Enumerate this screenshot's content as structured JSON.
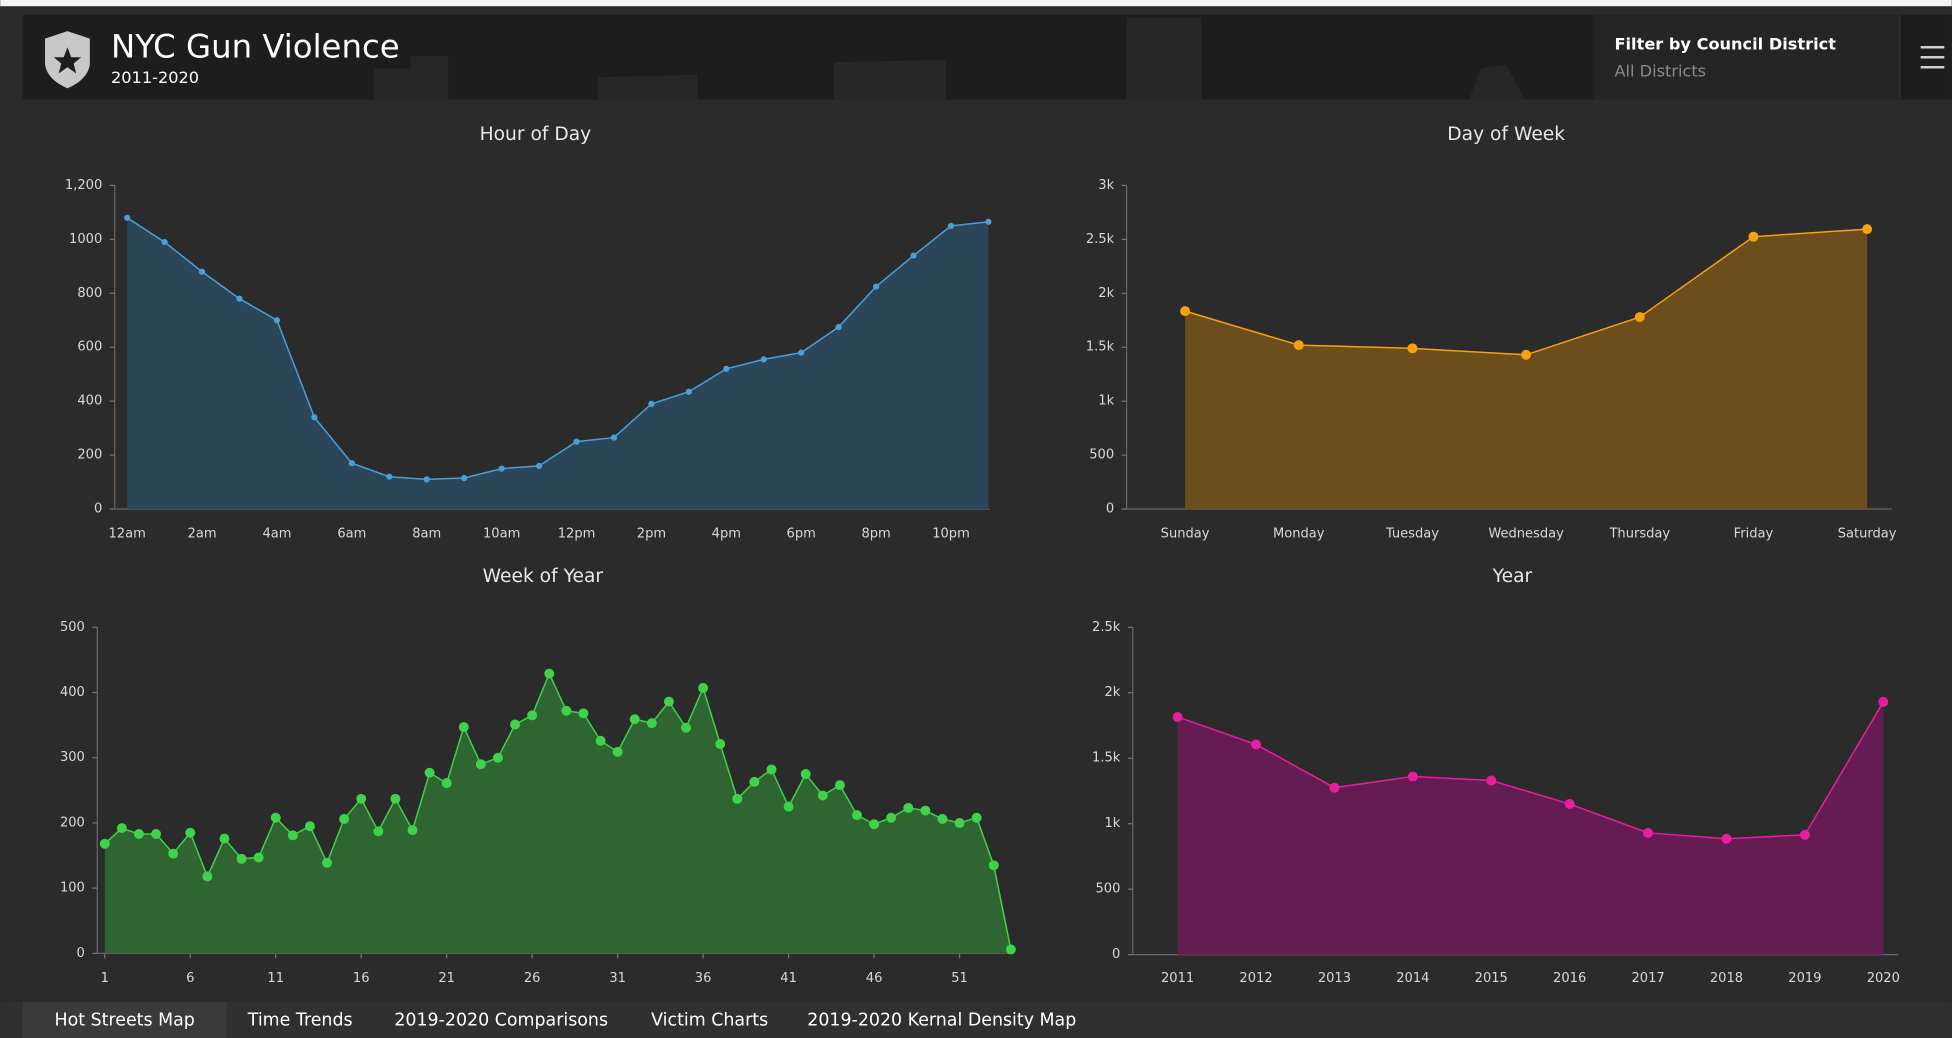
{
  "header": {
    "title": "NYC Gun Violence",
    "subtitle": "2011-2020"
  },
  "filter": {
    "label": "Filter by Council District",
    "value": "All Districts"
  },
  "tabs": [
    "Hot Streets Map",
    "Time Trends",
    "2019-2020 Comparisons",
    "Victim Charts",
    "2019-2020 Kernal Density Map"
  ],
  "chart_data": [
    {
      "type": "area",
      "title": "Hour of Day",
      "categories": [
        "12am",
        null,
        "2am",
        null,
        "4am",
        null,
        "6am",
        null,
        "8am",
        null,
        "10am",
        null,
        "12pm",
        null,
        "2pm",
        null,
        "4pm",
        null,
        "6pm",
        null,
        "8pm",
        null,
        "10pm",
        null
      ],
      "values": [
        1080,
        990,
        880,
        780,
        700,
        340,
        170,
        120,
        110,
        115,
        150,
        160,
        250,
        265,
        390,
        435,
        520,
        555,
        580,
        675,
        825,
        940,
        1050,
        1065
      ],
      "color": "#4a9fd8",
      "fill_color": "#2c4659",
      "ylim": [
        0,
        1200
      ],
      "yticks": [
        0,
        200,
        400,
        600,
        800,
        1000,
        {
          "value": 1200,
          "label": "1,200"
        }
      ],
      "grid": false
    },
    {
      "type": "area",
      "title": "Day of Week",
      "categories": [
        "Sunday",
        "Monday",
        "Tuesday",
        "Wednesday",
        "Thursday",
        "Friday",
        "Saturday"
      ],
      "values": [
        1835,
        1520,
        1490,
        1430,
        1780,
        2525,
        2595
      ],
      "color": "#f5a20e",
      "fill_color": "#6b4e1c",
      "ylim": [
        0,
        3000
      ],
      "yticks": [
        0,
        500,
        {
          "value": 1000,
          "label": "1k"
        },
        {
          "value": 1500,
          "label": "1.5k"
        },
        {
          "value": 2000,
          "label": "2k"
        },
        {
          "value": 2500,
          "label": "2.5k"
        },
        {
          "value": 3000,
          "label": "3k"
        }
      ],
      "grid": false
    },
    {
      "type": "area",
      "title": "Week of Year",
      "x": [
        1,
        2,
        3,
        4,
        5,
        6,
        7,
        8,
        9,
        10,
        11,
        12,
        13,
        14,
        15,
        16,
        17,
        18,
        19,
        20,
        21,
        22,
        23,
        24,
        25,
        26,
        27,
        28,
        29,
        30,
        31,
        32,
        33,
        34,
        35,
        36,
        37,
        38,
        39,
        40,
        41,
        42,
        43,
        44,
        45,
        46,
        47,
        48,
        49,
        50,
        51,
        52,
        53,
        54
      ],
      "values": [
        168,
        192,
        183,
        183,
        153,
        185,
        118,
        176,
        145,
        147,
        208,
        181,
        195,
        139,
        206,
        237,
        187,
        237,
        189,
        277,
        261,
        347,
        290,
        300,
        351,
        365,
        429,
        372,
        368,
        326,
        309,
        359,
        353,
        386,
        346,
        407,
        321,
        237,
        263,
        282,
        225,
        275,
        242,
        258,
        212,
        198,
        208,
        223,
        219,
        206,
        200,
        208,
        135,
        6
      ],
      "color": "#3fd24a",
      "fill_color": "#2f6530",
      "xlim": [
        1,
        54
      ],
      "xticks": [
        1,
        6,
        11,
        16,
        21,
        26,
        31,
        36,
        41,
        46,
        51
      ],
      "ylim": [
        0,
        500
      ],
      "yticks": [
        0,
        100,
        200,
        300,
        400,
        500
      ],
      "grid": false
    },
    {
      "type": "area",
      "title": "Year",
      "categories": [
        "2011",
        "2012",
        "2013",
        "2014",
        "2015",
        "2016",
        "2017",
        "2018",
        "2019",
        "2020"
      ],
      "values": [
        1815,
        1605,
        1275,
        1360,
        1330,
        1150,
        930,
        885,
        915,
        1930
      ],
      "color": "#e81ea0",
      "fill_color": "#651c52",
      "ylim": [
        0,
        2500
      ],
      "yticks": [
        0,
        500,
        {
          "value": 1000,
          "label": "1k"
        },
        {
          "value": 1500,
          "label": "1.5k"
        },
        {
          "value": 2000,
          "label": "2k"
        },
        {
          "value": 2500,
          "label": "2.5k"
        }
      ],
      "grid": false
    }
  ]
}
